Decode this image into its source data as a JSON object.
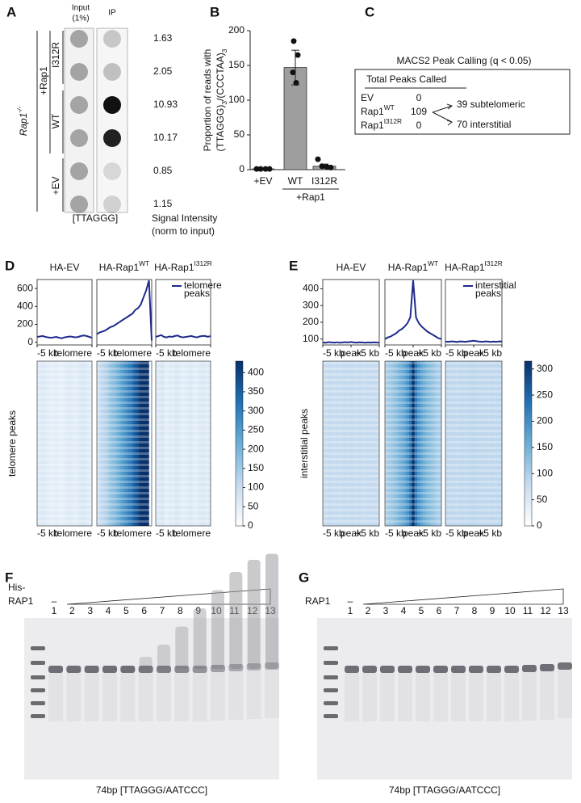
{
  "panel_a": {
    "label": "A",
    "input_header": [
      "Input",
      "(1%)"
    ],
    "ip_header": "IP",
    "genotype": {
      "text": "Rap1",
      "sup": "-/-"
    },
    "rescue": "+Rap1",
    "conditions": [
      "I312R",
      "WT",
      "+EV"
    ],
    "signal": [
      1.63,
      2.05,
      10.93,
      10.17,
      0.85,
      1.15
    ],
    "probe": "[TTAGGG]",
    "signal_caption": [
      "Signal Intensity",
      "(norm to input)"
    ]
  },
  "panel_c": {
    "label": "C",
    "title": "MACS2 Peak Calling (q < 0.05)",
    "header": "Total Peaks Called",
    "rows": [
      {
        "name": "EV",
        "count": 0
      },
      {
        "name": "Rap1",
        "sup": "WT",
        "count": 109
      },
      {
        "name": "Rap1",
        "sup": "I312R",
        "count": 0
      }
    ],
    "split": [
      "39 subtelomeric",
      "70 interstitial"
    ]
  },
  "panel_f": {
    "label": "F",
    "protein": [
      "His-",
      "RAP1"
    ],
    "control": "–",
    "lanes": [
      1,
      2,
      3,
      4,
      5,
      6,
      7,
      8,
      9,
      10,
      11,
      12,
      13
    ],
    "caption": "74bp [TTAGGG/AATCCC]"
  },
  "panel_g": {
    "label": "G",
    "protein": [
      "RAP1"
    ],
    "control": "–",
    "lanes": [
      1,
      2,
      3,
      4,
      5,
      6,
      7,
      8,
      9,
      10,
      11,
      12,
      13
    ],
    "caption": "74bp [TTAGGG/AATCCC]"
  },
  "chart_data": [
    {
      "type": "bar",
      "label": "B",
      "ylabel": {
        "line1": "Proportion of reads with",
        "line2": [
          {
            "text": "(TTAGGG)",
            "sub": "3"
          },
          {
            "text": "/(CCCTAA)",
            "sub": "3"
          }
        ]
      },
      "categories": [
        "+EV",
        "WT",
        "I312R"
      ],
      "group": "+Rap1",
      "values": [
        1,
        147,
        5
      ],
      "errors": [
        0,
        25,
        3
      ],
      "points": [
        [
          1,
          1,
          1,
          1
        ],
        [
          185,
          165,
          140,
          125
        ],
        [
          15,
          5,
          4,
          3
        ]
      ],
      "color": "#9e9e9e",
      "ylim": [
        0,
        200
      ],
      "yticks": [
        0,
        50,
        100,
        150,
        200
      ]
    },
    {
      "type": "line",
      "label": "D",
      "titles": [
        {
          "text": "HA-EV"
        },
        {
          "text": "HA-Rap1",
          "sup": "WT"
        },
        {
          "text": "HA-Rap1",
          "sup": "I312R"
        }
      ],
      "legend": [
        "telomere",
        "peaks"
      ],
      "heatmap_ylabel": "telomere peaks",
      "color": "#1f2a8c",
      "x": [
        -5,
        -4.75,
        -4.5,
        -4.25,
        -4,
        -3.75,
        -3.5,
        -3.25,
        -3,
        -2.75,
        -2.5,
        -2.25,
        -2,
        -1.75,
        -1.5,
        -1.25,
        -1,
        -0.75,
        -0.5,
        -0.25,
        0
      ],
      "series": [
        {
          "values": [
            60,
            65,
            70,
            60,
            55,
            50,
            55,
            60,
            50,
            45,
            55,
            60,
            65,
            60,
            55,
            60,
            70,
            75,
            70,
            60,
            50
          ]
        },
        {
          "values": [
            90,
            110,
            120,
            130,
            150,
            170,
            180,
            200,
            220,
            240,
            260,
            280,
            300,
            320,
            360,
            380,
            420,
            500,
            580,
            690,
            20
          ]
        },
        {
          "values": [
            60,
            70,
            80,
            60,
            55,
            65,
            60,
            70,
            75,
            60,
            55,
            60,
            65,
            70,
            60,
            55,
            65,
            70,
            70,
            60,
            70
          ]
        }
      ],
      "xlim": [
        -5,
        0
      ],
      "xticks": [
        {
          "value": -5,
          "label": "-5 kb"
        },
        {
          "value": 0,
          "label": "telomere"
        }
      ],
      "ylim": [
        -30,
        700
      ],
      "yticks": [
        0,
        200,
        400,
        600
      ],
      "clim": [
        0,
        430
      ],
      "cticks": [
        0,
        50,
        100,
        150,
        200,
        250,
        300,
        350,
        400
      ]
    },
    {
      "type": "line",
      "label": "E",
      "titles": [
        {
          "text": "HA-EV"
        },
        {
          "text": "HA-Rap1",
          "sup": "WT"
        },
        {
          "text": "HA-Rap1",
          "sup": "I312R"
        }
      ],
      "legend": [
        "interstitial",
        "peaks"
      ],
      "heatmap_ylabel": "interstitial peaks",
      "color": "#1f2a8c",
      "x": [
        -5,
        -4.5,
        -4,
        -3.5,
        -3,
        -2.5,
        -2,
        -1.5,
        -1,
        -0.5,
        0,
        0.5,
        1,
        1.5,
        2,
        2.5,
        3,
        3.5,
        4,
        4.5,
        5
      ],
      "series": [
        {
          "values": [
            80,
            78,
            82,
            80,
            79,
            81,
            78,
            80,
            82,
            80,
            83,
            80,
            79,
            81,
            80,
            78,
            80,
            79,
            81,
            80,
            78
          ]
        },
        {
          "values": [
            100,
            110,
            115,
            125,
            135,
            150,
            160,
            175,
            195,
            230,
            450,
            230,
            195,
            175,
            160,
            145,
            135,
            125,
            115,
            105,
            100
          ]
        },
        {
          "values": [
            85,
            84,
            86,
            85,
            83,
            86,
            85,
            84,
            86,
            88,
            90,
            87,
            85,
            84,
            86,
            85,
            83,
            85,
            84,
            86,
            85
          ]
        }
      ],
      "xlim": [
        -5,
        5
      ],
      "xticks": [
        {
          "value": -5,
          "label": "-5 kb"
        },
        {
          "value": 0,
          "label": "peak"
        },
        {
          "value": 5,
          "label": "+5 kb"
        }
      ],
      "ylim": [
        65,
        455
      ],
      "yticks": [
        100,
        200,
        300,
        400
      ],
      "clim": [
        0,
        315
      ],
      "cticks": [
        0,
        50,
        100,
        150,
        200,
        250,
        300
      ]
    }
  ]
}
